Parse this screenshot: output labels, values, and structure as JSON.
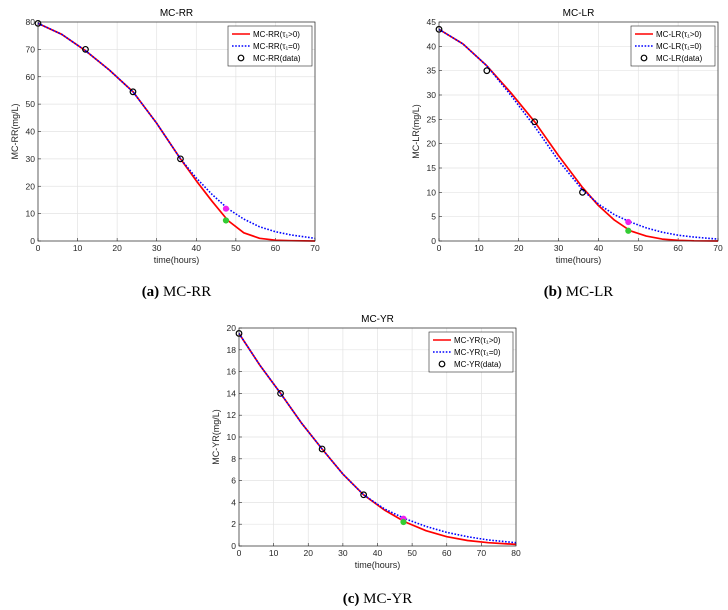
{
  "chart_data": [
    {
      "type": "line",
      "title": "MC-RR",
      "caption_prefix": "(a)",
      "caption_text": "MC-RR",
      "xlabel": "time(hours)",
      "ylabel": "MC-RR(mg/L)",
      "xlim": [
        0,
        70
      ],
      "ylim": [
        0,
        80
      ],
      "xticks": [
        0,
        10,
        20,
        30,
        40,
        50,
        60,
        70
      ],
      "yticks": [
        0,
        10,
        20,
        30,
        40,
        50,
        60,
        70,
        80
      ],
      "grid": true,
      "legend_position": "top-right",
      "legend": [
        "MC-RR(τ₁>0)",
        "MC-RR(τ₁=0)",
        "MC-RR(data)"
      ],
      "series": [
        {
          "name": "MC-RR(τ₁>0)",
          "style": "solid",
          "color": "#ff0000",
          "x": [
            0,
            6,
            12,
            18,
            24,
            30,
            36,
            40,
            44,
            48,
            52,
            56,
            60,
            64,
            70
          ],
          "y": [
            79.5,
            75.5,
            69.5,
            62.5,
            54.5,
            43,
            30,
            22,
            14.5,
            7.5,
            3,
            1,
            0.3,
            0.1,
            0
          ]
        },
        {
          "name": "MC-RR(τ₁=0)",
          "style": "dotted",
          "color": "#0000ff",
          "x": [
            0,
            6,
            12,
            18,
            24,
            30,
            36,
            40,
            44,
            48,
            52,
            56,
            60,
            64,
            70
          ],
          "y": [
            79.5,
            75.5,
            69.5,
            62.5,
            54.5,
            43,
            30,
            23,
            17,
            11.8,
            8,
            5.2,
            3.4,
            2.2,
            1
          ]
        }
      ],
      "data_points": {
        "x": [
          0,
          12,
          24,
          36
        ],
        "y": [
          79.5,
          70,
          54.5,
          30
        ]
      },
      "highlight_points": [
        {
          "x": 47.5,
          "y": 11.8,
          "color": "#ee22ee"
        },
        {
          "x": 47.5,
          "y": 7.5,
          "color": "#33cc33"
        }
      ]
    },
    {
      "type": "line",
      "title": "MC-LR",
      "caption_prefix": "(b)",
      "caption_text": "MC-LR",
      "xlabel": "time(hours)",
      "ylabel": "MC-LR(mg/L)",
      "xlim": [
        0,
        70
      ],
      "ylim": [
        0,
        45
      ],
      "xticks": [
        0,
        10,
        20,
        30,
        40,
        50,
        60,
        70
      ],
      "yticks": [
        0,
        5,
        10,
        15,
        20,
        25,
        30,
        35,
        40,
        45
      ],
      "grid": true,
      "legend_position": "top-right",
      "legend": [
        "MC-LR(τ₁>0)",
        "MC-LR(τ₁=0)",
        "MC-LR(data)"
      ],
      "series": [
        {
          "name": "MC-LR(τ₁>0)",
          "style": "solid",
          "color": "#ff0000",
          "x": [
            0,
            6,
            12,
            18,
            24,
            30,
            36,
            40,
            44,
            48,
            52,
            56,
            60,
            64,
            70
          ],
          "y": [
            43.5,
            40.5,
            36,
            30.5,
            24.5,
            17.5,
            11,
            7.3,
            4.3,
            2.1,
            1,
            0.4,
            0.15,
            0.05,
            0
          ]
        },
        {
          "name": "MC-LR(τ₁=0)",
          "style": "dotted",
          "color": "#0000ff",
          "x": [
            0,
            6,
            12,
            18,
            24,
            30,
            36,
            40,
            44,
            48,
            52,
            56,
            60,
            64,
            70
          ],
          "y": [
            43.5,
            40.5,
            36,
            30,
            23.5,
            16.5,
            10.5,
            7.6,
            5.4,
            3.9,
            2.7,
            1.8,
            1.2,
            0.8,
            0.4
          ]
        }
      ],
      "data_points": {
        "x": [
          0,
          12,
          24,
          36
        ],
        "y": [
          43.5,
          35,
          24.5,
          10
        ]
      },
      "highlight_points": [
        {
          "x": 47.5,
          "y": 3.9,
          "color": "#ee22ee"
        },
        {
          "x": 47.5,
          "y": 2.1,
          "color": "#33cc33"
        }
      ]
    },
    {
      "type": "line",
      "title": "MC-YR",
      "caption_prefix": "(c)",
      "caption_text": "MC-YR",
      "xlabel": "time(hours)",
      "ylabel": "MC-YR(mg/L)",
      "xlim": [
        0,
        80
      ],
      "ylim": [
        0,
        20
      ],
      "xticks": [
        0,
        10,
        20,
        30,
        40,
        50,
        60,
        70,
        80
      ],
      "yticks": [
        0,
        2,
        4,
        6,
        8,
        10,
        12,
        14,
        16,
        18,
        20
      ],
      "grid": true,
      "legend_position": "top-right",
      "legend": [
        "MC-YR(τ₁>0)",
        "MC-YR(τ₁=0)",
        "MC-YR(data)"
      ],
      "series": [
        {
          "name": "MC-YR(τ₁>0)",
          "style": "solid",
          "color": "#ff0000",
          "x": [
            0,
            6,
            12,
            18,
            24,
            30,
            36,
            42,
            48,
            54,
            60,
            66,
            72,
            80
          ],
          "y": [
            19.5,
            16.6,
            14,
            11.3,
            8.9,
            6.6,
            4.7,
            3.3,
            2.2,
            1.4,
            0.85,
            0.5,
            0.3,
            0.15
          ]
        },
        {
          "name": "MC-YR(τ₁=0)",
          "style": "dotted",
          "color": "#0000ff",
          "x": [
            0,
            6,
            12,
            18,
            24,
            30,
            36,
            42,
            48,
            54,
            60,
            66,
            72,
            80
          ],
          "y": [
            19.5,
            16.6,
            14,
            11.3,
            8.9,
            6.6,
            4.7,
            3.4,
            2.5,
            1.8,
            1.25,
            0.85,
            0.55,
            0.3
          ]
        }
      ],
      "data_points": {
        "x": [
          0,
          12,
          24,
          36
        ],
        "y": [
          19.5,
          14,
          8.9,
          4.7
        ]
      },
      "highlight_points": [
        {
          "x": 47.5,
          "y": 2.5,
          "color": "#ee22ee"
        },
        {
          "x": 47.5,
          "y": 2.2,
          "color": "#33cc33"
        }
      ]
    }
  ]
}
